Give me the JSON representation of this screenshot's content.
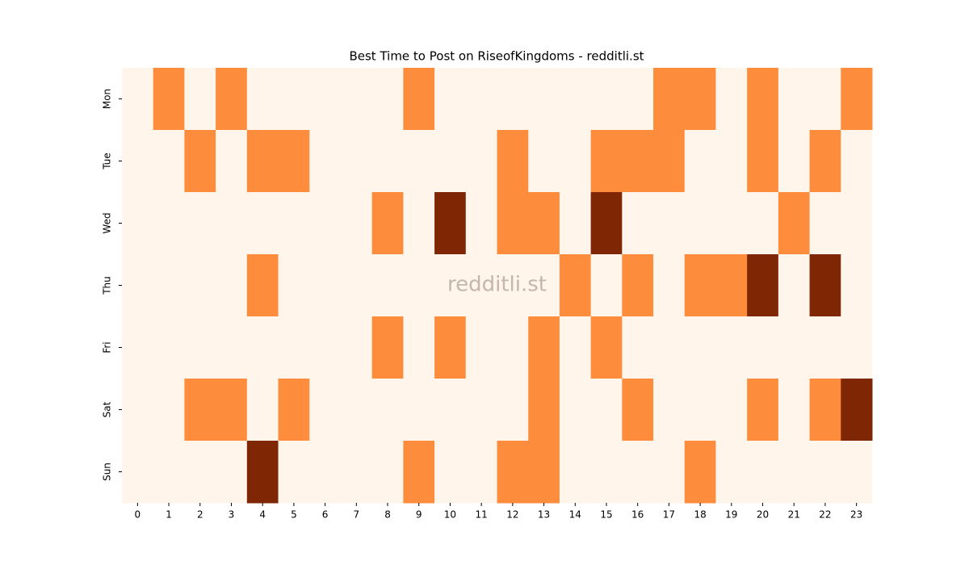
{
  "chart_data": {
    "type": "heatmap",
    "title": "Best Time to Post on RiseofKingdoms - redditli.st",
    "watermark": "redditli.st",
    "x_categories": [
      "0",
      "1",
      "2",
      "3",
      "4",
      "5",
      "6",
      "7",
      "8",
      "9",
      "10",
      "11",
      "12",
      "13",
      "14",
      "15",
      "16",
      "17",
      "18",
      "19",
      "20",
      "21",
      "22",
      "23"
    ],
    "y_categories": [
      "Mon",
      "Tue",
      "Wed",
      "Thu",
      "Fri",
      "Sat",
      "Sun"
    ],
    "colors": [
      "#fff5eb",
      "#fd8d3c",
      "#7f2704"
    ],
    "values": [
      [
        0,
        1,
        0,
        1,
        0,
        0,
        0,
        0,
        0,
        1,
        0,
        0,
        0,
        0,
        0,
        0,
        0,
        1,
        1,
        0,
        1,
        0,
        0,
        1
      ],
      [
        0,
        0,
        1,
        0,
        1,
        1,
        0,
        0,
        0,
        0,
        0,
        0,
        1,
        0,
        0,
        1,
        1,
        1,
        0,
        0,
        1,
        0,
        1,
        0
      ],
      [
        0,
        0,
        0,
        0,
        0,
        0,
        0,
        0,
        1,
        0,
        2,
        0,
        1,
        1,
        0,
        2,
        0,
        0,
        0,
        0,
        0,
        1,
        0,
        0
      ],
      [
        0,
        0,
        0,
        0,
        1,
        0,
        0,
        0,
        0,
        0,
        0,
        0,
        0,
        0,
        1,
        0,
        1,
        0,
        1,
        1,
        2,
        0,
        2,
        0
      ],
      [
        0,
        0,
        0,
        0,
        0,
        0,
        0,
        0,
        1,
        0,
        1,
        0,
        0,
        1,
        0,
        1,
        0,
        0,
        0,
        0,
        0,
        0,
        0,
        0
      ],
      [
        0,
        0,
        1,
        1,
        0,
        1,
        0,
        0,
        0,
        0,
        0,
        0,
        0,
        1,
        0,
        0,
        1,
        0,
        0,
        0,
        1,
        0,
        1,
        2
      ],
      [
        0,
        0,
        0,
        0,
        2,
        0,
        0,
        0,
        0,
        1,
        0,
        0,
        1,
        1,
        0,
        0,
        0,
        0,
        1,
        0,
        0,
        0,
        0,
        0
      ]
    ]
  }
}
